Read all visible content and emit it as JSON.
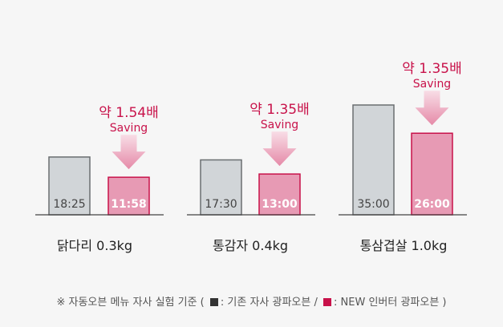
{
  "chart_data": {
    "type": "bar",
    "y_unit": "minutes",
    "ylim": [
      0,
      45
    ],
    "colors": {
      "old": "#d1d5d8",
      "old_stroke": "#6a6e71",
      "new": "#e79ab4",
      "new_stroke": "#c8124a",
      "accent": "#c8124a",
      "arrow_light": "#f8dde6",
      "arrow_dark": "#e58aa8"
    },
    "groups": [
      {
        "name": "닭다리 0.3kg",
        "old": {
          "label": "18:25",
          "value": 18.42
        },
        "new": {
          "label": "11:58",
          "value": 11.97
        },
        "saving_ratio": "약 1.54배",
        "saving_word": "Saving"
      },
      {
        "name": "통감자 0.4kg",
        "old": {
          "label": "17:30",
          "value": 17.5
        },
        "new": {
          "label": "13:00",
          "value": 13.0
        },
        "saving_ratio": "약 1.35배",
        "saving_word": "Saving"
      },
      {
        "name": "통삼겹살 1.0kg",
        "old": {
          "label": "35:00",
          "value": 35.0
        },
        "new": {
          "label": "26:00",
          "value": 26.0
        },
        "saving_ratio": "약 1.35배",
        "saving_word": "Saving"
      }
    ]
  },
  "footnote": {
    "prefix": "※ 자동오븐 메뉴 자사 실험 기준 (",
    "old_text": ": 기존 자사 광파오븐 /",
    "new_text": ": NEW 인버터 광파오븐 )"
  }
}
